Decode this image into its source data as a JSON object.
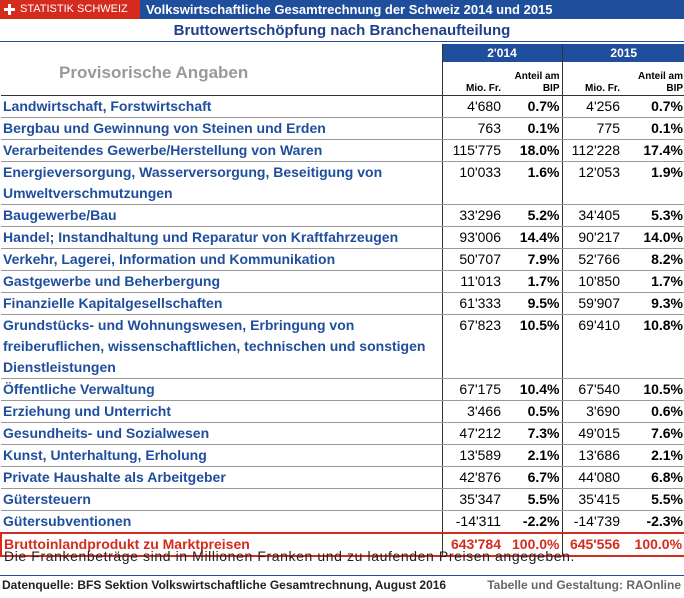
{
  "header": {
    "brand": "STATISTIK SCHWEIZ",
    "title": "Volkswirtschaftliche Gesamtrechnung der Schweiz 2014 und 2015",
    "subtitle": "Bruttowertschöpfung nach Branchenaufteilung"
  },
  "table": {
    "note": "Provisorische Angaben",
    "years": [
      "2'014",
      "2015"
    ],
    "subheaders": [
      "Mio. Fr.",
      "Anteil am BIP",
      "Mio. Fr.",
      "Anteil am BIP"
    ],
    "rows": [
      [
        "Landwirtschaft, Forstwirtschaft",
        "4'680",
        "0.7%",
        "4'256",
        "0.7%"
      ],
      [
        "Bergbau und Gewinnung von Steinen und Erden",
        "763",
        "0.1%",
        "775",
        "0.1%"
      ],
      [
        "Verarbeitendes Gewerbe/Herstellung von Waren",
        "115'775",
        "18.0%",
        "112'228",
        "17.4%"
      ],
      [
        "Energieversorgung, Wasserversorgung, Beseitigung von Umweltverschmutzungen",
        "10'033",
        "1.6%",
        "12'053",
        "1.9%"
      ],
      [
        "Baugewerbe/Bau",
        "33'296",
        "5.2%",
        "34'405",
        "5.3%"
      ],
      [
        "Handel; Instandhaltung und Reparatur von Kraftfahrzeugen",
        "93'006",
        "14.4%",
        "90'217",
        "14.0%"
      ],
      [
        "Verkehr, Lagerei, Information und Kommunikation",
        "50'707",
        "7.9%",
        "52'766",
        "8.2%"
      ],
      [
        "Gastgewerbe und Beherbergung",
        "11'013",
        "1.7%",
        "10'850",
        "1.7%"
      ],
      [
        "Finanzielle Kapitalgesellschaften",
        "61'333",
        "9.5%",
        "59'907",
        "9.3%"
      ],
      [
        "Grundstücks- und Wohnungswesen, Erbringung von freiberuflichen, wissenschaftlichen, technischen und sonstigen Dienstleistungen",
        "67'823",
        "10.5%",
        "69'410",
        "10.8%"
      ],
      [
        "Öffentliche Verwaltung",
        "67'175",
        "10.4%",
        "67'540",
        "10.5%"
      ],
      [
        "Erziehung und Unterricht",
        "3'466",
        "0.5%",
        "3'690",
        "0.6%"
      ],
      [
        "Gesundheits- und Sozialwesen",
        "47'212",
        "7.3%",
        "49'015",
        "7.6%"
      ],
      [
        "Kunst, Unterhaltung, Erholung",
        "13'589",
        "2.1%",
        "13'686",
        "2.1%"
      ],
      [
        "Private Haushalte als Arbeitgeber",
        "42'876",
        "6.7%",
        "44'080",
        "6.8%"
      ],
      [
        "Gütersteuern",
        "35'347",
        "5.5%",
        "35'415",
        "5.5%"
      ],
      [
        "Gütersubventionen",
        "-14'311",
        "-2.2%",
        "-14'739",
        "-2.3%"
      ]
    ],
    "total": [
      "Bruttoinlandprodukt zu Marktpreisen",
      "643'784",
      "100.0%",
      "645'556",
      "100.0%"
    ]
  },
  "footer": {
    "note": "Die Frankenbeträge sind in Millionen Franken und zu laufenden Preisen angegeben.",
    "source": "Datenquelle: BFS Sektion Volkswirtschaftliche Gesamtrechnung, August 2016",
    "credit": "Tabelle und Gestaltung: RAOnline"
  }
}
